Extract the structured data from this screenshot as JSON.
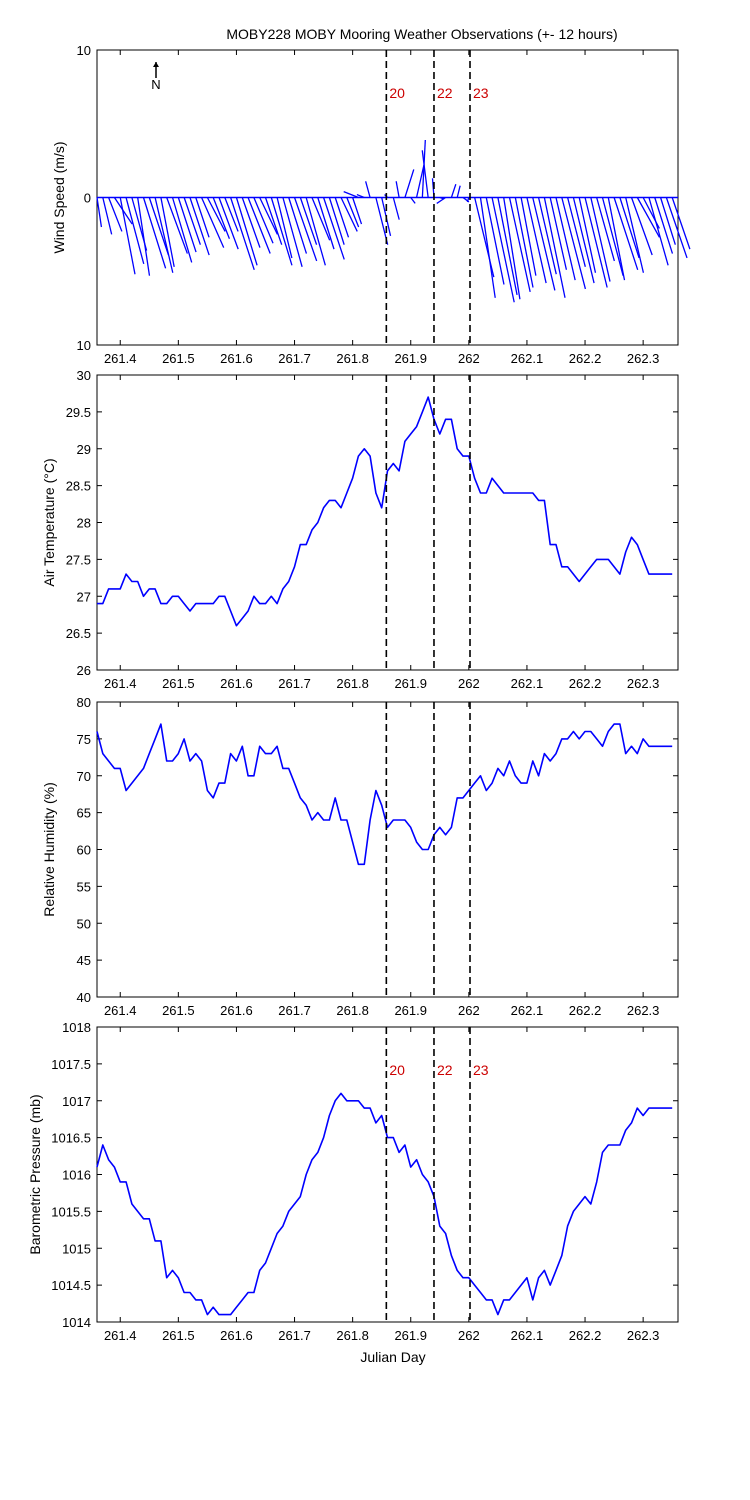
{
  "title": "MOBY228 MOBY Mooring Weather Observations (+- 12 hours)",
  "colors": {
    "series": "#0000ff",
    "marker": "#cc0000",
    "axis": "#000000"
  },
  "x_ticks": [
    261.4,
    261.5,
    261.6,
    261.7,
    261.8,
    261.9,
    262,
    262.1,
    262.2,
    262.3
  ],
  "x_tick_labels": [
    "261.4",
    "261.5",
    "261.6",
    "261.7",
    "261.8",
    "261.9",
    "262",
    "262.1",
    "262.2",
    "262.3"
  ],
  "xlim": [
    261.36,
    262.36
  ],
  "xlabel": "Julian Day",
  "markers": [
    {
      "x": 261.858,
      "label": "20"
    },
    {
      "x": 261.94,
      "label": "22"
    },
    {
      "x": 262.002,
      "label": "23"
    }
  ],
  "chart_data": [
    {
      "type": "line",
      "subtype": "wind-stick",
      "ylabel": "Wind Speed (m/s)",
      "ylim": [
        -10,
        10
      ],
      "y_ticks": [
        10,
        0,
        -10
      ],
      "y_tick_labels": [
        "10",
        "0",
        "10"
      ],
      "north_label": "N",
      "x": [
        261.36,
        261.37,
        261.38,
        261.39,
        261.4,
        261.41,
        261.42,
        261.43,
        261.44,
        261.45,
        261.46,
        261.47,
        261.48,
        261.49,
        261.5,
        261.51,
        261.52,
        261.53,
        261.54,
        261.55,
        261.56,
        261.57,
        261.58,
        261.59,
        261.6,
        261.61,
        261.62,
        261.63,
        261.64,
        261.65,
        261.66,
        261.67,
        261.68,
        261.69,
        261.7,
        261.71,
        261.72,
        261.73,
        261.74,
        261.75,
        261.76,
        261.77,
        261.78,
        261.79,
        261.8,
        261.81,
        261.82,
        261.83,
        261.84,
        261.85,
        261.86,
        261.87,
        261.88,
        261.89,
        261.9,
        261.91,
        261.92,
        261.93,
        261.94,
        261.95,
        261.96,
        261.97,
        261.98,
        261.99,
        262.0,
        262.01,
        262.02,
        262.03,
        262.04,
        262.05,
        262.06,
        262.07,
        262.08,
        262.09,
        262.1,
        262.11,
        262.12,
        262.13,
        262.14,
        262.15,
        262.16,
        262.17,
        262.18,
        262.19,
        262.2,
        262.21,
        262.22,
        262.23,
        262.24,
        262.25,
        262.26,
        262.27,
        262.28,
        262.29,
        262.3,
        262.31,
        262.32,
        262.33,
        262.34,
        262.35
      ],
      "u": [
        0.3,
        0.6,
        0.9,
        1.2,
        1.0,
        1.2,
        1.0,
        0.8,
        1.5,
        1.3,
        1.2,
        0.9,
        1.4,
        1.3,
        1.2,
        1.1,
        1.3,
        0.9,
        1.5,
        1.2,
        1.1,
        1.3,
        0.9,
        1.6,
        1.4,
        1.2,
        1.5,
        1.3,
        1.2,
        1.1,
        1.4,
        1.0,
        1.3,
        1.2,
        1.5,
        1.1,
        1.3,
        1.2,
        1.1,
        1.4,
        1.0,
        0.9,
        1.1,
        0.8,
        0.6,
        -1.0,
        -0.5,
        -0.3,
        0.8,
        0.6,
        -0.2,
        0.4,
        -0.2,
        0.6,
        0.3,
        0.5,
        0.2,
        -0.4,
        -0.1,
        0.3,
        -0.6,
        0.3,
        0.2,
        0.4,
        -0.1,
        1.3,
        1.0,
        1.2,
        1.5,
        1.3,
        1.1,
        1.4,
        1.2,
        1.0,
        1.3,
        1.5,
        1.2,
        1.4,
        1.1,
        1.3,
        1.6,
        1.2,
        1.4,
        1.1,
        1.5,
        1.3,
        1.2,
        1.4,
        1.1,
        1.6,
        1.3,
        1.2,
        1.4,
        1.5,
        1.1,
        1.3,
        1.2,
        1.0,
        1.4,
        1.2
      ],
      "v": [
        -2.0,
        -2.5,
        -2.3,
        -1.8,
        -5.2,
        -4.5,
        -3.6,
        -5.3,
        -4.8,
        -3.9,
        -5.1,
        -4.7,
        -3.8,
        -4.4,
        -3.7,
        -3.2,
        -3.9,
        -2.7,
        -3.4,
        -2.3,
        -2.8,
        -3.5,
        -2.3,
        -4.9,
        -4.6,
        -3.4,
        -3.8,
        -3.1,
        -2.5,
        -3.2,
        -4.6,
        -4.1,
        -4.7,
        -3.8,
        -4.3,
        -3.2,
        -4.6,
        -2.9,
        -3.5,
        -4.2,
        -3.2,
        -2.7,
        -2.3,
        -2.0,
        -1.8,
        0.4,
        0.2,
        1.1,
        -3.2,
        -2.6,
        0.2,
        -1.5,
        1.1,
        1.9,
        -0.4,
        2.2,
        3.9,
        3.2,
        1.3,
        -0.1,
        -0.4,
        0.9,
        0.8,
        -0.3,
        -0.3,
        -5.4,
        -6.8,
        -5.9,
        -7.1,
        -6.6,
        -6.9,
        -6.4,
        -6.1,
        -5.3,
        -5.8,
        -6.3,
        -5.2,
        -6.8,
        -4.9,
        -5.6,
        -6.2,
        -4.7,
        -5.8,
        -5.1,
        -6.1,
        -5.7,
        -4.3,
        -5.3,
        -5.6,
        -4.9,
        -4.1,
        -5.1,
        -3.9,
        -2.7,
        -2.1,
        -4.6,
        -3.8,
        -3.2,
        -4.1,
        -3.5
      ]
    },
    {
      "type": "line",
      "ylabel": "Air Temperature (°C)",
      "ylim": [
        26,
        30
      ],
      "y_ticks": [
        26,
        26.5,
        27,
        27.5,
        28,
        28.5,
        29,
        29.5,
        30
      ],
      "y_tick_labels": [
        "26",
        "26.5",
        "27",
        "27.5",
        "28",
        "28.5",
        "29",
        "29.5",
        "30"
      ],
      "x": [
        261.36,
        261.37,
        261.38,
        261.39,
        261.4,
        261.41,
        261.42,
        261.43,
        261.44,
        261.45,
        261.46,
        261.47,
        261.48,
        261.49,
        261.5,
        261.51,
        261.52,
        261.53,
        261.54,
        261.55,
        261.56,
        261.57,
        261.58,
        261.59,
        261.6,
        261.61,
        261.62,
        261.63,
        261.64,
        261.65,
        261.66,
        261.67,
        261.68,
        261.69,
        261.7,
        261.71,
        261.72,
        261.73,
        261.74,
        261.75,
        261.76,
        261.77,
        261.78,
        261.79,
        261.8,
        261.81,
        261.82,
        261.83,
        261.84,
        261.85,
        261.86,
        261.87,
        261.88,
        261.89,
        261.9,
        261.91,
        261.92,
        261.93,
        261.94,
        261.95,
        261.96,
        261.97,
        261.98,
        261.99,
        262.0,
        262.01,
        262.02,
        262.03,
        262.04,
        262.05,
        262.06,
        262.07,
        262.08,
        262.09,
        262.1,
        262.11,
        262.12,
        262.13,
        262.14,
        262.15,
        262.16,
        262.17,
        262.18,
        262.19,
        262.2,
        262.21,
        262.22,
        262.23,
        262.24,
        262.25,
        262.26,
        262.27,
        262.28,
        262.29,
        262.3,
        262.31,
        262.32,
        262.33,
        262.34,
        262.35
      ],
      "y": [
        26.9,
        26.9,
        27.1,
        27.1,
        27.1,
        27.3,
        27.2,
        27.2,
        27.0,
        27.1,
        27.1,
        26.9,
        26.9,
        27.0,
        27.0,
        26.9,
        26.8,
        26.9,
        26.9,
        26.9,
        26.9,
        27.0,
        27.0,
        26.8,
        26.6,
        26.7,
        26.8,
        27.0,
        26.9,
        26.9,
        27.0,
        26.9,
        27.1,
        27.2,
        27.4,
        27.7,
        27.7,
        27.9,
        28.0,
        28.2,
        28.3,
        28.3,
        28.2,
        28.4,
        28.6,
        28.9,
        29.0,
        28.9,
        28.4,
        28.2,
        28.7,
        28.8,
        28.7,
        29.1,
        29.2,
        29.3,
        29.5,
        29.7,
        29.4,
        29.2,
        29.4,
        29.4,
        29.0,
        28.9,
        28.9,
        28.6,
        28.4,
        28.4,
        28.6,
        28.5,
        28.4,
        28.4,
        28.4,
        28.4,
        28.4,
        28.4,
        28.3,
        28.3,
        27.7,
        27.7,
        27.4,
        27.4,
        27.3,
        27.2,
        27.3,
        27.4,
        27.5,
        27.5,
        27.5,
        27.4,
        27.3,
        27.6,
        27.8,
        27.7,
        27.5,
        27.3,
        27.3,
        27.3,
        27.3,
        27.3
      ]
    },
    {
      "type": "line",
      "ylabel": "Relative Humidity (%)",
      "ylim": [
        40,
        80
      ],
      "y_ticks": [
        40,
        45,
        50,
        55,
        60,
        65,
        70,
        75,
        80
      ],
      "y_tick_labels": [
        "40",
        "45",
        "50",
        "55",
        "60",
        "65",
        "70",
        "75",
        "80"
      ],
      "x": [
        261.36,
        261.37,
        261.38,
        261.39,
        261.4,
        261.41,
        261.42,
        261.43,
        261.44,
        261.45,
        261.46,
        261.47,
        261.48,
        261.49,
        261.5,
        261.51,
        261.52,
        261.53,
        261.54,
        261.55,
        261.56,
        261.57,
        261.58,
        261.59,
        261.6,
        261.61,
        261.62,
        261.63,
        261.64,
        261.65,
        261.66,
        261.67,
        261.68,
        261.69,
        261.7,
        261.71,
        261.72,
        261.73,
        261.74,
        261.75,
        261.76,
        261.77,
        261.78,
        261.79,
        261.8,
        261.81,
        261.82,
        261.83,
        261.84,
        261.85,
        261.86,
        261.87,
        261.88,
        261.89,
        261.9,
        261.91,
        261.92,
        261.93,
        261.94,
        261.95,
        261.96,
        261.97,
        261.98,
        261.99,
        262.0,
        262.01,
        262.02,
        262.03,
        262.04,
        262.05,
        262.06,
        262.07,
        262.08,
        262.09,
        262.1,
        262.11,
        262.12,
        262.13,
        262.14,
        262.15,
        262.16,
        262.17,
        262.18,
        262.19,
        262.2,
        262.21,
        262.22,
        262.23,
        262.24,
        262.25,
        262.26,
        262.27,
        262.28,
        262.29,
        262.3,
        262.31,
        262.32,
        262.33,
        262.34,
        262.35
      ],
      "y": [
        76,
        73,
        72,
        71,
        71,
        68,
        69,
        70,
        71,
        73,
        75,
        77,
        72,
        72,
        73,
        75,
        72,
        73,
        72,
        68,
        67,
        69,
        69,
        73,
        72,
        74,
        70,
        70,
        74,
        73,
        73,
        74,
        71,
        71,
        69,
        67,
        66,
        64,
        65,
        64,
        64,
        67,
        64,
        64,
        61,
        58,
        58,
        64,
        68,
        66,
        63,
        64,
        64,
        64,
        63,
        61,
        60,
        60,
        62,
        63,
        62,
        63,
        67,
        67,
        68,
        69,
        70,
        68,
        69,
        71,
        70,
        72,
        70,
        69,
        69,
        72,
        70,
        73,
        72,
        73,
        75,
        75,
        76,
        75,
        76,
        76,
        75,
        74,
        76,
        77,
        77,
        73,
        74,
        73,
        75,
        74,
        74,
        74,
        74,
        74
      ]
    },
    {
      "type": "line",
      "ylabel": "Barometric Pressure (mb)",
      "ylim": [
        1014,
        1018
      ],
      "y_ticks": [
        1014,
        1014.5,
        1015,
        1015.5,
        1016,
        1016.5,
        1017,
        1017.5,
        1018
      ],
      "y_tick_labels": [
        "1014",
        "1014.5",
        "1015",
        "1015.5",
        "1016",
        "1016.5",
        "1017",
        "1017.5",
        "1018"
      ],
      "x": [
        261.36,
        261.37,
        261.38,
        261.39,
        261.4,
        261.41,
        261.42,
        261.43,
        261.44,
        261.45,
        261.46,
        261.47,
        261.48,
        261.49,
        261.5,
        261.51,
        261.52,
        261.53,
        261.54,
        261.55,
        261.56,
        261.57,
        261.58,
        261.59,
        261.6,
        261.61,
        261.62,
        261.63,
        261.64,
        261.65,
        261.66,
        261.67,
        261.68,
        261.69,
        261.7,
        261.71,
        261.72,
        261.73,
        261.74,
        261.75,
        261.76,
        261.77,
        261.78,
        261.79,
        261.8,
        261.81,
        261.82,
        261.83,
        261.84,
        261.85,
        261.86,
        261.87,
        261.88,
        261.89,
        261.9,
        261.91,
        261.92,
        261.93,
        261.94,
        261.95,
        261.96,
        261.97,
        261.98,
        261.99,
        262.0,
        262.01,
        262.02,
        262.03,
        262.04,
        262.05,
        262.06,
        262.07,
        262.08,
        262.09,
        262.1,
        262.11,
        262.12,
        262.13,
        262.14,
        262.15,
        262.16,
        262.17,
        262.18,
        262.19,
        262.2,
        262.21,
        262.22,
        262.23,
        262.24,
        262.25,
        262.26,
        262.27,
        262.28,
        262.29,
        262.3,
        262.31,
        262.32,
        262.33,
        262.34,
        262.35
      ],
      "y": [
        1016.1,
        1016.4,
        1016.2,
        1016.1,
        1015.9,
        1015.9,
        1015.6,
        1015.5,
        1015.4,
        1015.4,
        1015.1,
        1015.1,
        1014.6,
        1014.7,
        1014.6,
        1014.4,
        1014.4,
        1014.3,
        1014.3,
        1014.1,
        1014.2,
        1014.1,
        1014.1,
        1014.1,
        1014.2,
        1014.3,
        1014.4,
        1014.4,
        1014.7,
        1014.8,
        1015.0,
        1015.2,
        1015.3,
        1015.5,
        1015.6,
        1015.7,
        1016.0,
        1016.2,
        1016.3,
        1016.5,
        1016.8,
        1017.0,
        1017.1,
        1017.0,
        1017.0,
        1017.0,
        1016.9,
        1016.9,
        1016.7,
        1016.8,
        1016.5,
        1016.5,
        1016.3,
        1016.4,
        1016.1,
        1016.2,
        1016.0,
        1015.9,
        1015.7,
        1015.3,
        1015.2,
        1014.9,
        1014.7,
        1014.6,
        1014.6,
        1014.5,
        1014.4,
        1014.3,
        1014.3,
        1014.1,
        1014.3,
        1014.3,
        1014.4,
        1014.5,
        1014.6,
        1014.3,
        1014.6,
        1014.7,
        1014.5,
        1014.7,
        1014.9,
        1015.3,
        1015.5,
        1015.6,
        1015.7,
        1015.6,
        1015.9,
        1016.3,
        1016.4,
        1016.4,
        1016.4,
        1016.6,
        1016.7,
        1016.9,
        1016.8,
        1016.9,
        1016.9,
        1016.9,
        1016.9,
        1016.9
      ]
    }
  ]
}
